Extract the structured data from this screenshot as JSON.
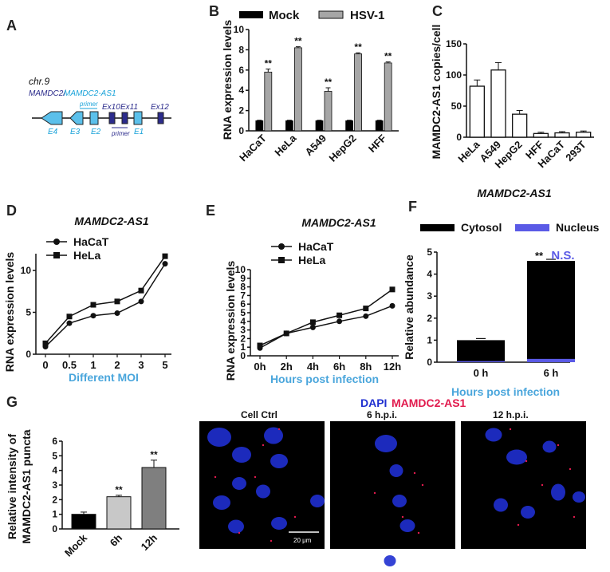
{
  "panels": {
    "A": "A",
    "B": "B",
    "C": "C",
    "D": "D",
    "E": "E",
    "F": "F",
    "G": "G"
  },
  "panel_a": {
    "chr": "chr.9",
    "gene_left": "MAMDC2/",
    "gene_right": "MAMDC2-AS1",
    "exons_bottom": [
      "E4",
      "E3",
      "E2",
      "E1"
    ],
    "exons_top": [
      "Ex10",
      "Ex11",
      "Ex12"
    ],
    "primer": "primer",
    "colors": {
      "exon": "#5bc0eb",
      "small_exon": "#2c2c8c",
      "text_blue": "#1aa3d9"
    }
  },
  "micrograph": {
    "legend_dapi": "DAPI",
    "legend_target": "MAMDC2-AS1",
    "panels": [
      "Cell Ctrl",
      "6 h.p.i.",
      "12 h.p.i."
    ],
    "scale_bar": "20 μm",
    "colors": {
      "dapi": "#1f2fd0",
      "target": "#e11a4d"
    }
  },
  "chart_data": [
    {
      "panel": "B",
      "type": "bar",
      "categories": [
        "HaCaT",
        "HeLa",
        "A549",
        "HepG2",
        "HFF"
      ],
      "series": [
        {
          "name": "Mock",
          "values": [
            1,
            1,
            1,
            1,
            1
          ],
          "errors": [
            0.05,
            0.05,
            0.05,
            0.05,
            0.05
          ],
          "color": "#000000"
        },
        {
          "name": "HSV-1",
          "values": [
            5.8,
            8.2,
            3.9,
            7.6,
            6.7
          ],
          "errors": [
            0.3,
            0.1,
            0.35,
            0.1,
            0.1
          ],
          "color": "#a6a6a6"
        }
      ],
      "significance": [
        "**",
        "**",
        "**",
        "**",
        "**"
      ],
      "ylabel": "RNA expression levels",
      "ylim": [
        0,
        10
      ],
      "yticks": [
        0,
        2,
        4,
        6,
        8,
        10
      ]
    },
    {
      "panel": "C",
      "type": "bar",
      "categories": [
        "HeLa",
        "A549",
        "HepG2",
        "HFF",
        "HaCaT",
        "293T"
      ],
      "values": [
        82,
        108,
        37,
        6,
        7,
        8
      ],
      "errors": [
        10,
        12,
        6,
        2,
        2,
        2
      ],
      "ylabel": "MAMDC2-AS1 copies/cell",
      "ylim": [
        0,
        150
      ],
      "yticks": [
        0,
        50,
        100,
        150
      ]
    },
    {
      "panel": "D",
      "type": "line",
      "title": "MAMDC2-AS1",
      "x": [
        "0",
        "0.5",
        "1",
        "2",
        "3",
        "5"
      ],
      "series": [
        {
          "name": "HaCaT",
          "marker": "circle",
          "values": [
            0.9,
            3.7,
            4.6,
            4.9,
            6.3,
            10.8
          ]
        },
        {
          "name": "HeLa",
          "marker": "square",
          "values": [
            1.3,
            4.5,
            5.9,
            6.3,
            7.6,
            11.7
          ]
        }
      ],
      "xlabel": "Different MOI",
      "ylabel": "RNA expression levels",
      "ylim": [
        0,
        12
      ],
      "yticks": [
        0,
        5,
        10
      ]
    },
    {
      "panel": "E",
      "type": "line",
      "title": "MAMDC2-AS1",
      "x": [
        "0h",
        "2h",
        "4h",
        "6h",
        "8h",
        "12h"
      ],
      "series": [
        {
          "name": "HaCaT",
          "marker": "circle",
          "values": [
            0.9,
            2.6,
            3.3,
            4.0,
            4.6,
            5.8
          ]
        },
        {
          "name": "HeLa",
          "marker": "square",
          "values": [
            1.2,
            2.6,
            3.9,
            4.7,
            5.5,
            7.7
          ]
        }
      ],
      "xlabel": "Hours post infection",
      "ylabel": "RNA expression levels",
      "ylim": [
        0,
        10
      ],
      "yticks": [
        0,
        1,
        2,
        3,
        4,
        5,
        6,
        7,
        8,
        9,
        10
      ]
    },
    {
      "panel": "F",
      "type": "bar",
      "title": "MAMDC2-AS1",
      "categories": [
        "0 h",
        "6 h"
      ],
      "series": [
        {
          "name": "Cytosol",
          "values": [
            1.0,
            4.6
          ],
          "color": "#000000"
        },
        {
          "name": "Nucleus",
          "values": [
            0.05,
            0.15
          ],
          "color": "#5a5ae6"
        }
      ],
      "significance": [
        "**",
        "N.S."
      ],
      "xlabel": "Hours post infection",
      "ylabel": "Relative abundance",
      "ylim": [
        0,
        5
      ],
      "yticks": [
        0,
        1,
        2,
        3,
        4,
        5
      ]
    },
    {
      "panel": "G",
      "type": "bar",
      "categories": [
        "Mock",
        "6h",
        "12h"
      ],
      "values": [
        1.0,
        2.2,
        4.2
      ],
      "errors": [
        0.15,
        0.1,
        0.5
      ],
      "significance": [
        "",
        "**",
        "**"
      ],
      "ylabel": "Relative intensity of MAMDC2-AS1 puncta",
      "ylim": [
        0,
        6
      ],
      "yticks": [
        0,
        1,
        2,
        3,
        4,
        5,
        6
      ],
      "colors": [
        "#000000",
        "#c8c8c8",
        "#7f7f7f"
      ]
    }
  ]
}
